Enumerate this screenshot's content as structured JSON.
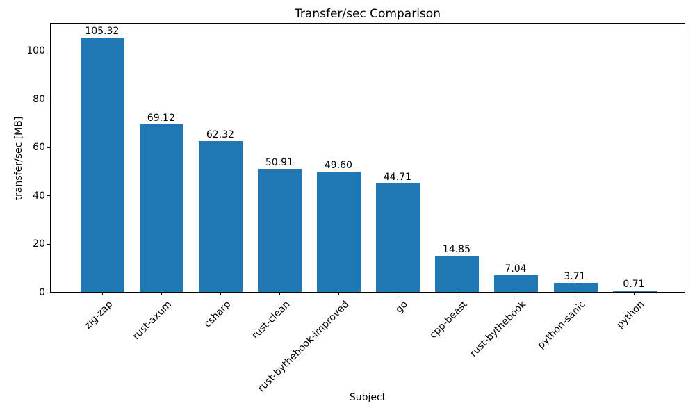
{
  "chart_data": {
    "type": "bar",
    "title": "Transfer/sec Comparison",
    "xlabel": "Subject",
    "ylabel": "transfer/sec [MB]",
    "categories": [
      "zig-zap",
      "rust-axum",
      "csharp",
      "rust-clean",
      "rust-bythebook-improved",
      "go",
      "cpp-beast",
      "rust-bythebook",
      "python-sanic",
      "python"
    ],
    "values": [
      105.32,
      69.12,
      62.32,
      50.91,
      49.6,
      44.71,
      14.85,
      7.04,
      3.71,
      0.71
    ],
    "value_labels": [
      "105.32",
      "69.12",
      "62.32",
      "50.91",
      "49.60",
      "44.71",
      "14.85",
      "7.04",
      "3.71",
      "0.71"
    ],
    "yticks": [
      0,
      20,
      40,
      60,
      80,
      100
    ],
    "ylim": [
      0,
      111.5
    ],
    "xlim": [
      -0.88,
      9.87
    ],
    "bar_color": "#1f77b4",
    "axis_color": "#000000",
    "background_color": "#ffffff",
    "grid": false,
    "legend_position": "none",
    "x_tick_rotation_deg": 45
  }
}
